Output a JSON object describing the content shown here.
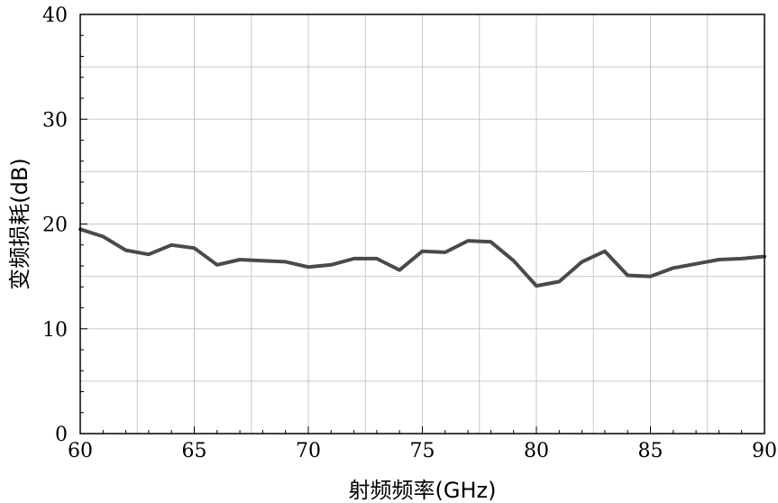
{
  "chart_data": {
    "type": "line",
    "title": "",
    "xlabel": "射频频率(GHz)",
    "ylabel": "变频损耗(dB)",
    "xlim": [
      60,
      90
    ],
    "ylim": [
      0,
      40
    ],
    "xticks": [
      60,
      65,
      70,
      75,
      80,
      85,
      90
    ],
    "yticks": [
      0,
      10,
      20,
      30,
      40
    ],
    "grid": true,
    "legend": "none",
    "series": [
      {
        "color": "#4a4a4a",
        "x": [
          60,
          61,
          62,
          63,
          64,
          65,
          66,
          67,
          68,
          69,
          70,
          71,
          72,
          73,
          74,
          75,
          76,
          77,
          78,
          79,
          80,
          81,
          82,
          83,
          84,
          85,
          86,
          87,
          88,
          89,
          90
        ],
        "y": [
          19.5,
          18.8,
          17.5,
          17.1,
          18.0,
          17.7,
          16.1,
          16.6,
          16.5,
          16.4,
          15.9,
          16.1,
          16.7,
          16.7,
          15.6,
          17.4,
          17.3,
          18.4,
          18.3,
          16.5,
          14.1,
          14.5,
          16.4,
          17.4,
          15.1,
          15.0,
          15.8,
          16.2,
          16.6,
          16.7,
          16.9
        ]
      }
    ]
  }
}
